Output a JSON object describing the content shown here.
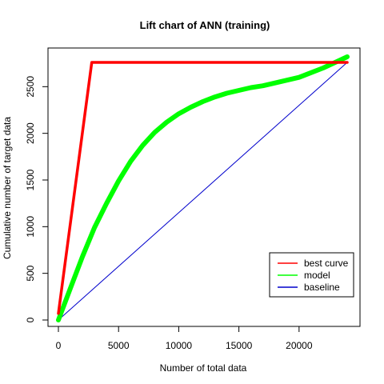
{
  "chart_data": {
    "type": "line",
    "title": "Lift chart of ANN (training)",
    "xlabel": "Number of total data",
    "ylabel": "Cumulative number of target data",
    "xlim": [
      0,
      24000
    ],
    "ylim": [
      0,
      2820
    ],
    "x_ticks": [
      0,
      5000,
      10000,
      15000,
      20000
    ],
    "y_ticks": [
      0,
      500,
      1000,
      1500,
      2000,
      2500
    ],
    "grid": false,
    "legend_position": "bottom-right",
    "series": [
      {
        "name": "best curve",
        "color": "#FF0000",
        "x": [
          0,
          2770,
          24000
        ],
        "y": [
          70,
          2760,
          2760
        ]
      },
      {
        "name": "model",
        "color": "#00FF00",
        "x": [
          0,
          1000,
          2000,
          3000,
          4000,
          5000,
          6000,
          7000,
          8000,
          9000,
          10000,
          11000,
          12000,
          13000,
          14000,
          15000,
          16000,
          17000,
          18000,
          19000,
          20000,
          21000,
          22000,
          23000,
          24000
        ],
        "y": [
          0,
          340,
          680,
          990,
          1250,
          1490,
          1700,
          1870,
          2010,
          2120,
          2210,
          2280,
          2340,
          2390,
          2430,
          2460,
          2490,
          2510,
          2540,
          2570,
          2600,
          2650,
          2700,
          2760,
          2820
        ]
      },
      {
        "name": "baseline",
        "color": "#0000CC",
        "x": [
          0,
          24000
        ],
        "y": [
          0,
          2760
        ]
      }
    ]
  }
}
